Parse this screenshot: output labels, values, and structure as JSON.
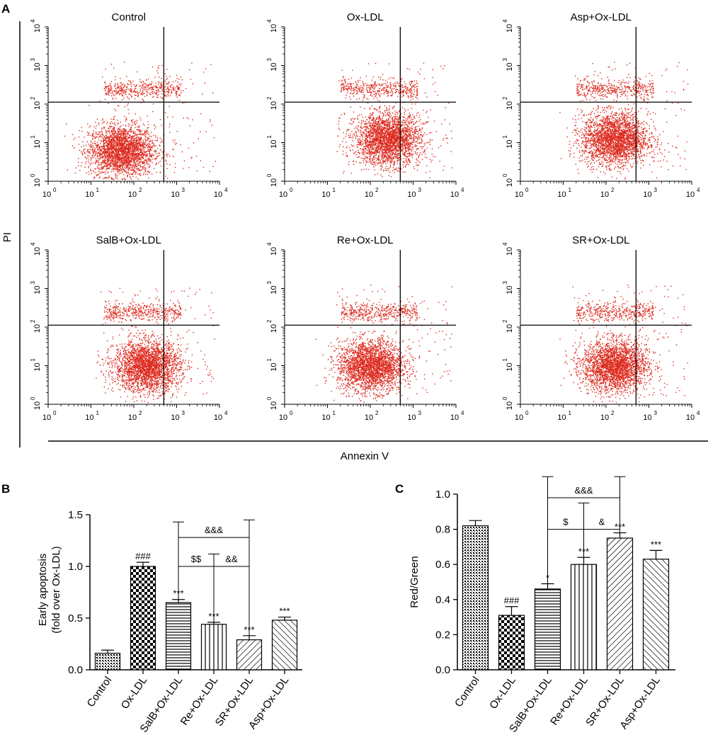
{
  "panel_labels": {
    "a": "A",
    "b": "B",
    "c": "C"
  },
  "colors": {
    "dots": "#dd2a1e",
    "axis": "#000000"
  },
  "chart_data": [
    {
      "type": "scatter",
      "panel": "A",
      "description_note": "Flow cytometry Annexin V / PI dot plots, log scale",
      "ylabel": "PI",
      "xlabel": "Annexin V",
      "xlim": [
        0,
        4
      ],
      "ylim": [
        0,
        4
      ],
      "x_ticks": [
        "0",
        "1",
        "2",
        "3",
        "4"
      ],
      "y_ticks": [
        "0",
        "1",
        "2",
        "3",
        "4"
      ],
      "tick_base": "10",
      "gate": {
        "x_decades": 2.7,
        "y_decades": 2.05
      },
      "plots": [
        {
          "title": "Control",
          "main_cluster": {
            "x": 1.7,
            "y": 0.8
          },
          "upper_band_y": 2.4
        },
        {
          "title": "Ox-LDL",
          "main_cluster": {
            "x": 2.4,
            "y": 1.1
          },
          "upper_band_y": 2.4
        },
        {
          "title": "Asp+Ox-LDL",
          "main_cluster": {
            "x": 2.2,
            "y": 1.1
          },
          "upper_band_y": 2.4
        },
        {
          "title": "SalB+Ox-LDL",
          "main_cluster": {
            "x": 2.3,
            "y": 1.0
          },
          "upper_band_y": 2.4
        },
        {
          "title": "Re+Ox-LDL",
          "main_cluster": {
            "x": 2.0,
            "y": 1.0
          },
          "upper_band_y": 2.4
        },
        {
          "title": "SR+Ox-LDL",
          "main_cluster": {
            "x": 2.2,
            "y": 1.0
          },
          "upper_band_y": 2.4
        }
      ]
    },
    {
      "type": "bar",
      "panel": "B",
      "ylabel_line1": "Early apoptosis",
      "ylabel_line2": "(fold over Ox-LDL)",
      "ylim": [
        0,
        1.5
      ],
      "yticks": [
        "0.0",
        "0.5",
        "1.0",
        "1.5"
      ],
      "categories": [
        "Control",
        "Ox-LDL",
        "SalB+Ox-LDL",
        "Re+Ox-LDL",
        "SR+Ox-LDL",
        "Asp+Ox-LDL"
      ],
      "values": [
        0.16,
        1.0,
        0.65,
        0.44,
        0.29,
        0.48
      ],
      "errors": [
        0.03,
        0.04,
        0.03,
        0.02,
        0.04,
        0.03
      ],
      "patterns": [
        "cross",
        "checker",
        "horizontal",
        "vertical",
        "diagonal",
        "diagonal-back"
      ],
      "annotations": [
        "",
        "###",
        "***",
        "***",
        "***",
        "***"
      ],
      "brackets": [
        {
          "label": "&&&",
          "y": 1.28,
          "from": 2,
          "to": 4
        },
        {
          "label": "$$",
          "y": 1.0,
          "from": 2,
          "to": 3
        },
        {
          "label": "&&",
          "y": 1.0,
          "from": 3,
          "to": 4
        }
      ],
      "bracket_tops": [
        1.43,
        1.12,
        1.45
      ]
    },
    {
      "type": "bar",
      "panel": "C",
      "ylabel": "Red/Green",
      "ylim": [
        0,
        1.0
      ],
      "yticks": [
        "0.0",
        "0.2",
        "0.4",
        "0.6",
        "0.8",
        "1.0"
      ],
      "categories": [
        "Control",
        "Ox-LDL",
        "SalB+Ox-LDL",
        "Re+Ox-LDL",
        "SR+Ox-LDL",
        "Asp+Ox-LDL"
      ],
      "values": [
        0.82,
        0.31,
        0.46,
        0.6,
        0.75,
        0.63
      ],
      "errors": [
        0.03,
        0.05,
        0.03,
        0.04,
        0.03,
        0.05
      ],
      "patterns": [
        "cross",
        "checker",
        "horizontal",
        "vertical",
        "diagonal",
        "diagonal-back"
      ],
      "annotations": [
        "",
        "###",
        "*",
        "***",
        "***",
        "***"
      ],
      "brackets": [
        {
          "label": "&&&",
          "y": 0.98,
          "from": 2,
          "to": 4
        },
        {
          "label": "$",
          "y": 0.8,
          "from": 2,
          "to": 3
        },
        {
          "label": "&",
          "y": 0.8,
          "from": 3,
          "to": 4
        }
      ],
      "bracket_tops": [
        1.1,
        0.95,
        1.1
      ]
    }
  ]
}
